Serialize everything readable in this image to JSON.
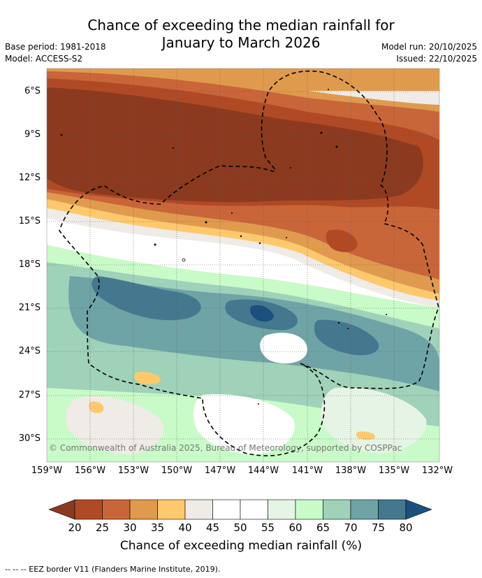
{
  "header": {
    "title_line1": "Chance of exceeding the median rainfall for",
    "title_line2": "January to March 2026",
    "base_period": "Base period: 1981-2018",
    "model": "Model: ACCESS-S2",
    "model_run": "Model run: 20/10/2025",
    "issued": "Issued: 22/10/2025"
  },
  "map": {
    "lat_labels": [
      "6°S",
      "9°S",
      "12°S",
      "15°S",
      "18°S",
      "21°S",
      "24°S",
      "27°S",
      "30°S"
    ],
    "lon_labels": [
      "159°W",
      "156°W",
      "153°W",
      "150°W",
      "147°W",
      "144°W",
      "141°W",
      "138°W",
      "135°W",
      "132°W"
    ],
    "copyright": "© Commonwealth of Australia 2025, Bureau of Meteorology, supported by COSPPac"
  },
  "colorbar": {
    "ticks": [
      "20",
      "25",
      "30",
      "35",
      "40",
      "45",
      "50",
      "55",
      "60",
      "65",
      "70",
      "75",
      "80"
    ],
    "title": "Chance of exceeding median rainfall (%)",
    "colors": [
      "#8b3a1f",
      "#b04a25",
      "#c8663a",
      "#e09a4e",
      "#fdc96c",
      "#efebe7",
      "#ffffff",
      "#ffffff",
      "#e6f4e6",
      "#c8fbc8",
      "#9fd2b9",
      "#6fa4a6",
      "#44788f",
      "#1b4f7d"
    ]
  },
  "footnote": "--  --  -- EEZ border V11 (Flanders Marine Institute, 2019)."
}
